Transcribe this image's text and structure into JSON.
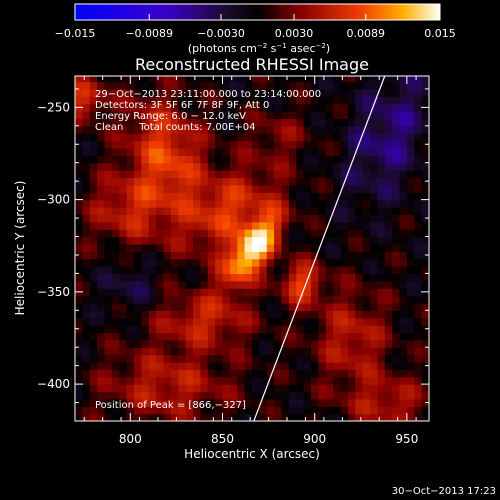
{
  "chart_data": {
    "type": "heatmap",
    "title": "Reconstructed RHESSI Image",
    "xlabel": "Heliocentric X (arcsec)",
    "ylabel": "Heliocentric Y (arcsec)",
    "xlim": [
      770,
      962
    ],
    "ylim": [
      -420,
      -233
    ],
    "x_ticks": [
      {
        "value": 800,
        "label": "800"
      },
      {
        "value": 850,
        "label": "850"
      },
      {
        "value": 900,
        "label": "900"
      },
      {
        "value": 950,
        "label": "950"
      }
    ],
    "y_ticks": [
      {
        "value": -250,
        "label": "−250"
      },
      {
        "value": -300,
        "label": "−300"
      },
      {
        "value": -350,
        "label": "−350"
      },
      {
        "value": -400,
        "label": "−400"
      }
    ],
    "colorbar": {
      "range": [
        -0.015,
        0.015
      ],
      "ticks": [
        {
          "value": -0.015,
          "label": "−0.015"
        },
        {
          "value": -0.0089,
          "label": "−0.0089"
        },
        {
          "value": -0.003,
          "label": "−0.0030"
        },
        {
          "value": 0.003,
          "label": "0.0030"
        },
        {
          "value": 0.0089,
          "label": "0.0089"
        },
        {
          "value": 0.015,
          "label": "0.015"
        }
      ],
      "units": {
        "prefix": "(photons cm",
        "sup1": "−2",
        "mid1": " s",
        "sup2": "−1",
        "mid2": " asec",
        "sup3": "−2",
        "suffix": ")"
      }
    },
    "info_lines": [
      "29−Oct−2013 23:11:00.000 to 23:14:00.000",
      "Detectors: 3F 5F 6F 7F 8F 9F, Att 0",
      "Energy Range: 6.0 − 12.0 keV",
      "Clean     Total counts: 7.00E+04"
    ],
    "peak_label": "Position of Peak = [866,−327]",
    "peak": [
      866,
      -327
    ],
    "sources": [
      {
        "x": 866,
        "y": -327,
        "amp": 0.015,
        "sx": 7,
        "sy": 16,
        "rot": -35
      },
      {
        "x": 854,
        "y": -305,
        "amp": 0.007,
        "sx": 20,
        "sy": 12,
        "rot": 40
      },
      {
        "x": 820,
        "y": -275,
        "amp": 0.008,
        "sx": 14,
        "sy": 22,
        "rot": 20
      },
      {
        "x": 800,
        "y": -305,
        "amp": 0.006,
        "sx": 16,
        "sy": 14,
        "rot": 0
      },
      {
        "x": 893,
        "y": -345,
        "amp": 0.008,
        "sx": 8,
        "sy": 8,
        "rot": 0
      },
      {
        "x": 775,
        "y": -245,
        "amp": 0.007,
        "sx": 8,
        "sy": 8,
        "rot": 0
      },
      {
        "x": 840,
        "y": -365,
        "amp": 0.006,
        "sx": 18,
        "sy": 10,
        "rot": 0
      },
      {
        "x": 820,
        "y": -400,
        "amp": 0.0055,
        "sx": 24,
        "sy": 14,
        "rot": 0
      },
      {
        "x": 920,
        "y": -375,
        "amp": 0.0055,
        "sx": 14,
        "sy": 18,
        "rot": 0
      },
      {
        "x": 940,
        "y": -410,
        "amp": 0.005,
        "sx": 16,
        "sy": 10,
        "rot": 0
      },
      {
        "x": 940,
        "y": -265,
        "amp": -0.005,
        "sx": 14,
        "sy": 26,
        "rot": -20
      },
      {
        "x": 800,
        "y": -345,
        "amp": -0.003,
        "sx": 10,
        "sy": 10,
        "rot": 0
      },
      {
        "x": 880,
        "y": -265,
        "amp": 0.003,
        "sx": 12,
        "sy": 10,
        "rot": 0
      }
    ],
    "limb_line": [
      [
        938,
        -233
      ],
      [
        867,
        -420
      ]
    ],
    "timestamp": "30−Oct−2013 17:23"
  }
}
